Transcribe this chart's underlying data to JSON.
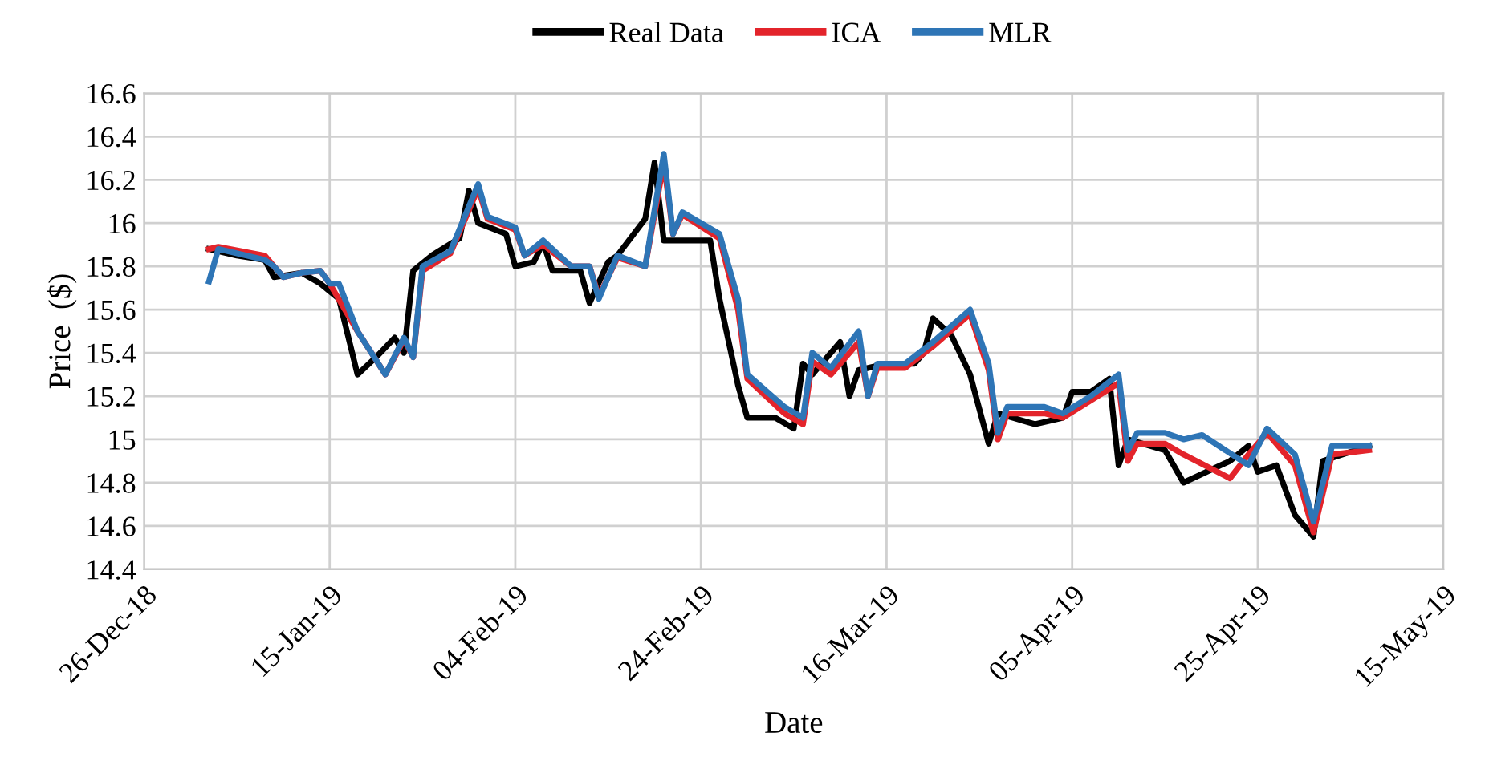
{
  "chart_data": {
    "type": "line",
    "xlabel": "Date",
    "ylabel": "Price  ($)",
    "xlim": [
      "2018-12-26",
      "2019-05-15"
    ],
    "xticks": [
      {
        "value": "2018-12-26",
        "label": "26-Dec-18"
      },
      {
        "value": "2019-01-15",
        "label": "15-Jan-19"
      },
      {
        "value": "2019-02-04",
        "label": "04-Feb-19"
      },
      {
        "value": "2019-02-24",
        "label": "24-Feb-19"
      },
      {
        "value": "2019-03-16",
        "label": "16-Mar-19"
      },
      {
        "value": "2019-04-05",
        "label": "05-Apr-19"
      },
      {
        "value": "2019-04-25",
        "label": "25-Apr-19"
      },
      {
        "value": "2019-05-15",
        "label": "15-May-19"
      }
    ],
    "ylim": [
      14.4,
      16.6
    ],
    "yticks": [
      {
        "value": 14.4,
        "label": "14.4"
      },
      {
        "value": 14.6,
        "label": "14.6"
      },
      {
        "value": 14.8,
        "label": "14.8"
      },
      {
        "value": 15,
        "label": "15"
      },
      {
        "value": 15.2,
        "label": "15.2"
      },
      {
        "value": 15.4,
        "label": "15.4"
      },
      {
        "value": 15.6,
        "label": "15.6"
      },
      {
        "value": 15.8,
        "label": "15.8"
      },
      {
        "value": 16,
        "label": "16"
      },
      {
        "value": 16.2,
        "label": "16.2"
      },
      {
        "value": 16.4,
        "label": "16.4"
      },
      {
        "value": 16.6,
        "label": "16.6"
      }
    ],
    "grid": true,
    "legend": "top",
    "marker": "none",
    "line_style": "solid",
    "series": [
      {
        "name": "Real Data",
        "color": "#000000",
        "x": [
          "2019-01-02",
          "2019-01-05",
          "2019-01-08",
          "2019-01-09",
          "2019-01-12",
          "2019-01-14",
          "2019-01-16",
          "2019-01-18",
          "2019-01-20",
          "2019-01-22",
          "2019-01-23",
          "2019-01-24",
          "2019-01-26",
          "2019-01-29",
          "2019-01-30",
          "2019-01-31",
          "2019-02-03",
          "2019-02-04",
          "2019-02-06",
          "2019-02-07",
          "2019-02-08",
          "2019-02-11",
          "2019-02-12",
          "2019-02-14",
          "2019-02-15",
          "2019-02-18",
          "2019-02-19",
          "2019-02-20",
          "2019-02-21",
          "2019-02-25",
          "2019-02-26",
          "2019-02-28",
          "2019-03-01",
          "2019-03-04",
          "2019-03-06",
          "2019-03-07",
          "2019-03-08",
          "2019-03-11",
          "2019-03-12",
          "2019-03-13",
          "2019-03-16",
          "2019-03-19",
          "2019-03-20",
          "2019-03-21",
          "2019-03-23",
          "2019-03-25",
          "2019-03-27",
          "2019-03-28",
          "2019-04-01",
          "2019-04-04",
          "2019-04-05",
          "2019-04-07",
          "2019-04-09",
          "2019-04-10",
          "2019-04-11",
          "2019-04-15",
          "2019-04-17",
          "2019-04-22",
          "2019-04-24",
          "2019-04-25",
          "2019-04-27",
          "2019-04-29",
          "2019-05-01",
          "2019-05-02",
          "2019-05-07"
        ],
        "values": [
          15.88,
          15.85,
          15.83,
          15.75,
          15.77,
          15.72,
          15.65,
          15.3,
          15.38,
          15.47,
          15.4,
          15.78,
          15.85,
          15.93,
          16.15,
          16.0,
          15.95,
          15.8,
          15.82,
          15.91,
          15.78,
          15.78,
          15.63,
          15.82,
          15.85,
          16.02,
          16.28,
          15.92,
          15.92,
          15.92,
          15.65,
          15.25,
          15.1,
          15.1,
          15.05,
          15.35,
          15.3,
          15.45,
          15.2,
          15.32,
          15.35,
          15.35,
          15.4,
          15.56,
          15.48,
          15.3,
          14.98,
          15.12,
          15.07,
          15.1,
          15.22,
          15.22,
          15.28,
          14.88,
          15.0,
          14.95,
          14.8,
          14.9,
          14.97,
          14.85,
          14.88,
          14.65,
          14.55,
          14.9,
          14.97
        ]
      },
      {
        "name": "ICA",
        "color": "#e3242b",
        "x": [
          "2019-01-02",
          "2019-01-03",
          "2019-01-08",
          "2019-01-09",
          "2019-01-10",
          "2019-01-12",
          "2019-01-14",
          "2019-01-15",
          "2019-01-18",
          "2019-01-21",
          "2019-01-23",
          "2019-01-24",
          "2019-01-25",
          "2019-01-28",
          "2019-01-31",
          "2019-02-01",
          "2019-02-04",
          "2019-02-05",
          "2019-02-07",
          "2019-02-10",
          "2019-02-12",
          "2019-02-13",
          "2019-02-15",
          "2019-02-18",
          "2019-02-20",
          "2019-02-21",
          "2019-02-22",
          "2019-02-26",
          "2019-02-28",
          "2019-03-01",
          "2019-03-05",
          "2019-03-07",
          "2019-03-08",
          "2019-03-10",
          "2019-03-13",
          "2019-03-14",
          "2019-03-15",
          "2019-03-18",
          "2019-03-21",
          "2019-03-25",
          "2019-03-27",
          "2019-03-28",
          "2019-03-29",
          "2019-04-02",
          "2019-04-04",
          "2019-04-07",
          "2019-04-10",
          "2019-04-11",
          "2019-04-12",
          "2019-04-15",
          "2019-04-17",
          "2019-04-22",
          "2019-04-24",
          "2019-04-26",
          "2019-04-29",
          "2019-05-01",
          "2019-05-03",
          "2019-05-07"
        ],
        "values": [
          15.88,
          15.89,
          15.85,
          15.8,
          15.75,
          15.77,
          15.78,
          15.72,
          15.5,
          15.3,
          15.46,
          15.38,
          15.78,
          15.86,
          16.16,
          16.02,
          15.97,
          15.85,
          15.9,
          15.8,
          15.8,
          15.66,
          15.84,
          15.8,
          16.28,
          15.95,
          16.04,
          15.93,
          15.6,
          15.28,
          15.12,
          15.07,
          15.36,
          15.3,
          15.45,
          15.2,
          15.33,
          15.33,
          15.43,
          15.58,
          15.32,
          15.0,
          15.12,
          15.12,
          15.1,
          15.18,
          15.26,
          14.9,
          14.98,
          14.98,
          14.93,
          14.82,
          14.93,
          15.03,
          14.88,
          14.57,
          14.93,
          14.95
        ]
      },
      {
        "name": "MLR",
        "color": "#2e75b6",
        "x": [
          "2019-01-02",
          "2019-01-03",
          "2019-01-08",
          "2019-01-09",
          "2019-01-10",
          "2019-01-12",
          "2019-01-14",
          "2019-01-15",
          "2019-01-16",
          "2019-01-18",
          "2019-01-21",
          "2019-01-23",
          "2019-01-24",
          "2019-01-25",
          "2019-01-28",
          "2019-01-31",
          "2019-02-01",
          "2019-02-04",
          "2019-02-05",
          "2019-02-07",
          "2019-02-10",
          "2019-02-12",
          "2019-02-13",
          "2019-02-15",
          "2019-02-18",
          "2019-02-20",
          "2019-02-21",
          "2019-02-22",
          "2019-02-26",
          "2019-02-28",
          "2019-03-01",
          "2019-03-05",
          "2019-03-07",
          "2019-03-08",
          "2019-03-10",
          "2019-03-13",
          "2019-03-14",
          "2019-03-15",
          "2019-03-18",
          "2019-03-21",
          "2019-03-25",
          "2019-03-27",
          "2019-03-28",
          "2019-03-29",
          "2019-04-02",
          "2019-04-04",
          "2019-04-07",
          "2019-04-10",
          "2019-04-11",
          "2019-04-12",
          "2019-04-15",
          "2019-04-17",
          "2019-04-19",
          "2019-04-24",
          "2019-04-26",
          "2019-04-29",
          "2019-05-01",
          "2019-05-03",
          "2019-05-07"
        ],
        "values": [
          15.73,
          15.88,
          15.83,
          15.8,
          15.75,
          15.77,
          15.78,
          15.72,
          15.72,
          15.5,
          15.3,
          15.47,
          15.38,
          15.8,
          15.87,
          16.18,
          16.03,
          15.98,
          15.85,
          15.92,
          15.8,
          15.8,
          15.65,
          15.85,
          15.8,
          16.32,
          15.95,
          16.05,
          15.95,
          15.65,
          15.3,
          15.15,
          15.1,
          15.4,
          15.33,
          15.5,
          15.2,
          15.35,
          15.35,
          15.45,
          15.6,
          15.35,
          15.03,
          15.15,
          15.15,
          15.12,
          15.2,
          15.3,
          14.95,
          15.03,
          15.03,
          15.0,
          15.02,
          14.88,
          15.05,
          14.93,
          14.62,
          14.97,
          14.97
        ]
      }
    ]
  }
}
